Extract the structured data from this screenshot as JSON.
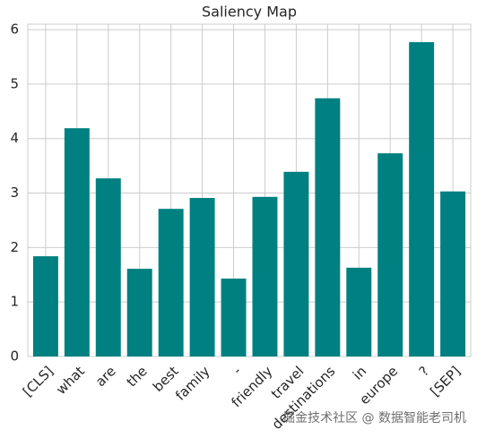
{
  "chart_data": {
    "type": "bar",
    "title": "Saliency Map",
    "categories": [
      "[CLS]",
      "what",
      "are",
      "the",
      "best",
      "family",
      "-",
      "friendly",
      "travel",
      "destinations",
      "in",
      "europe",
      "?",
      "[SEP]"
    ],
    "values": [
      1.84,
      4.19,
      3.27,
      1.61,
      2.71,
      2.91,
      1.43,
      2.93,
      3.39,
      4.74,
      1.63,
      3.73,
      5.77,
      3.03
    ],
    "color": "#008080",
    "ylim": [
      0,
      6.1
    ],
    "yticks": [
      0,
      1,
      2,
      3,
      4,
      5,
      6
    ],
    "grid": true,
    "annotation": "掘金技术社区 @ 数据智能老司机"
  }
}
